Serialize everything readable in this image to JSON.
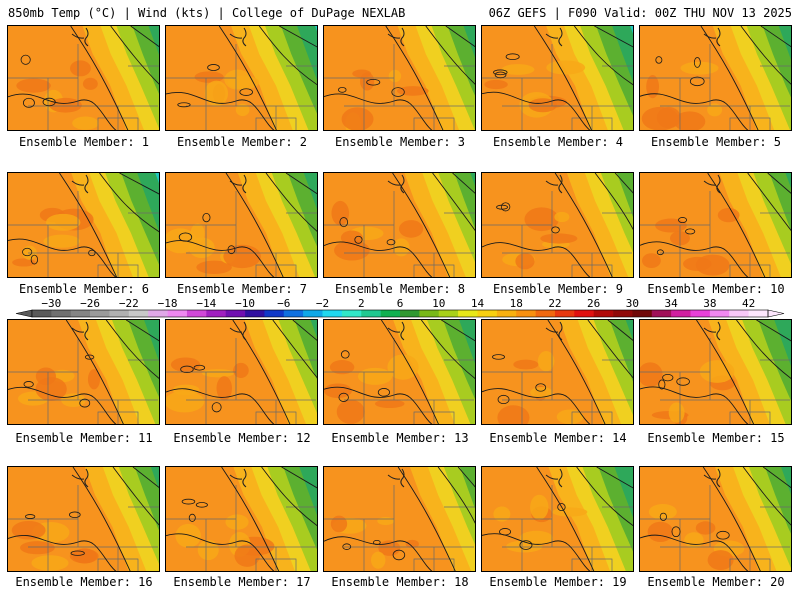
{
  "header": {
    "left": "850mb Temp (°C) | Wind (kts) | College of DuPage NEXLAB",
    "right": "06Z GEFS | F090 Valid: 00Z THU NOV 13 2025"
  },
  "members": [
    "Ensemble Member: 1",
    "Ensemble Member: 2",
    "Ensemble Member: 3",
    "Ensemble Member: 4",
    "Ensemble Member: 5",
    "Ensemble Member: 6",
    "Ensemble Member: 7",
    "Ensemble Member: 8",
    "Ensemble Member: 9",
    "Ensemble Member: 10",
    "Ensemble Member: 11",
    "Ensemble Member: 12",
    "Ensemble Member: 13",
    "Ensemble Member: 14",
    "Ensemble Member: 15",
    "Ensemble Member: 16",
    "Ensemble Member: 17",
    "Ensemble Member: 18",
    "Ensemble Member: 19",
    "Ensemble Member: 20"
  ],
  "colorbar": {
    "unit": "°C",
    "min": -32,
    "max": 44,
    "step": 2,
    "tick_labels": [
      "−30",
      "−26",
      "−22",
      "−18",
      "−14",
      "−10",
      "−6",
      "−2",
      "2",
      "6",
      "10",
      "14",
      "18",
      "22",
      "26",
      "30",
      "34",
      "38",
      "42"
    ],
    "tick_values": [
      -30,
      -26,
      -22,
      -18,
      -14,
      -10,
      -6,
      -2,
      2,
      6,
      10,
      14,
      18,
      22,
      26,
      30,
      34,
      38,
      42
    ],
    "colors": [
      "#5a5a5a",
      "#707070",
      "#858585",
      "#9a9a9a",
      "#b0b0b0",
      "#c8c8c8",
      "#e0a8e8",
      "#ee88f0",
      "#d048d8",
      "#a020c0",
      "#7010b0",
      "#3010a0",
      "#1038c8",
      "#1070e0",
      "#10a8e8",
      "#20d8f0",
      "#30e8c8",
      "#20c890",
      "#10b050",
      "#309830",
      "#78b818",
      "#a8d018",
      "#e8e818",
      "#f8d010",
      "#f8b010",
      "#f89010",
      "#f06810",
      "#e83810",
      "#e01010",
      "#b00808",
      "#900808",
      "#700808",
      "#a01058",
      "#d020a0",
      "#e840d8",
      "#f088f0",
      "#f8c8f8",
      "#fde6fd"
    ]
  },
  "colors": {
    "background": "#ffffff",
    "border": "#000000",
    "contour": "#202020"
  }
}
